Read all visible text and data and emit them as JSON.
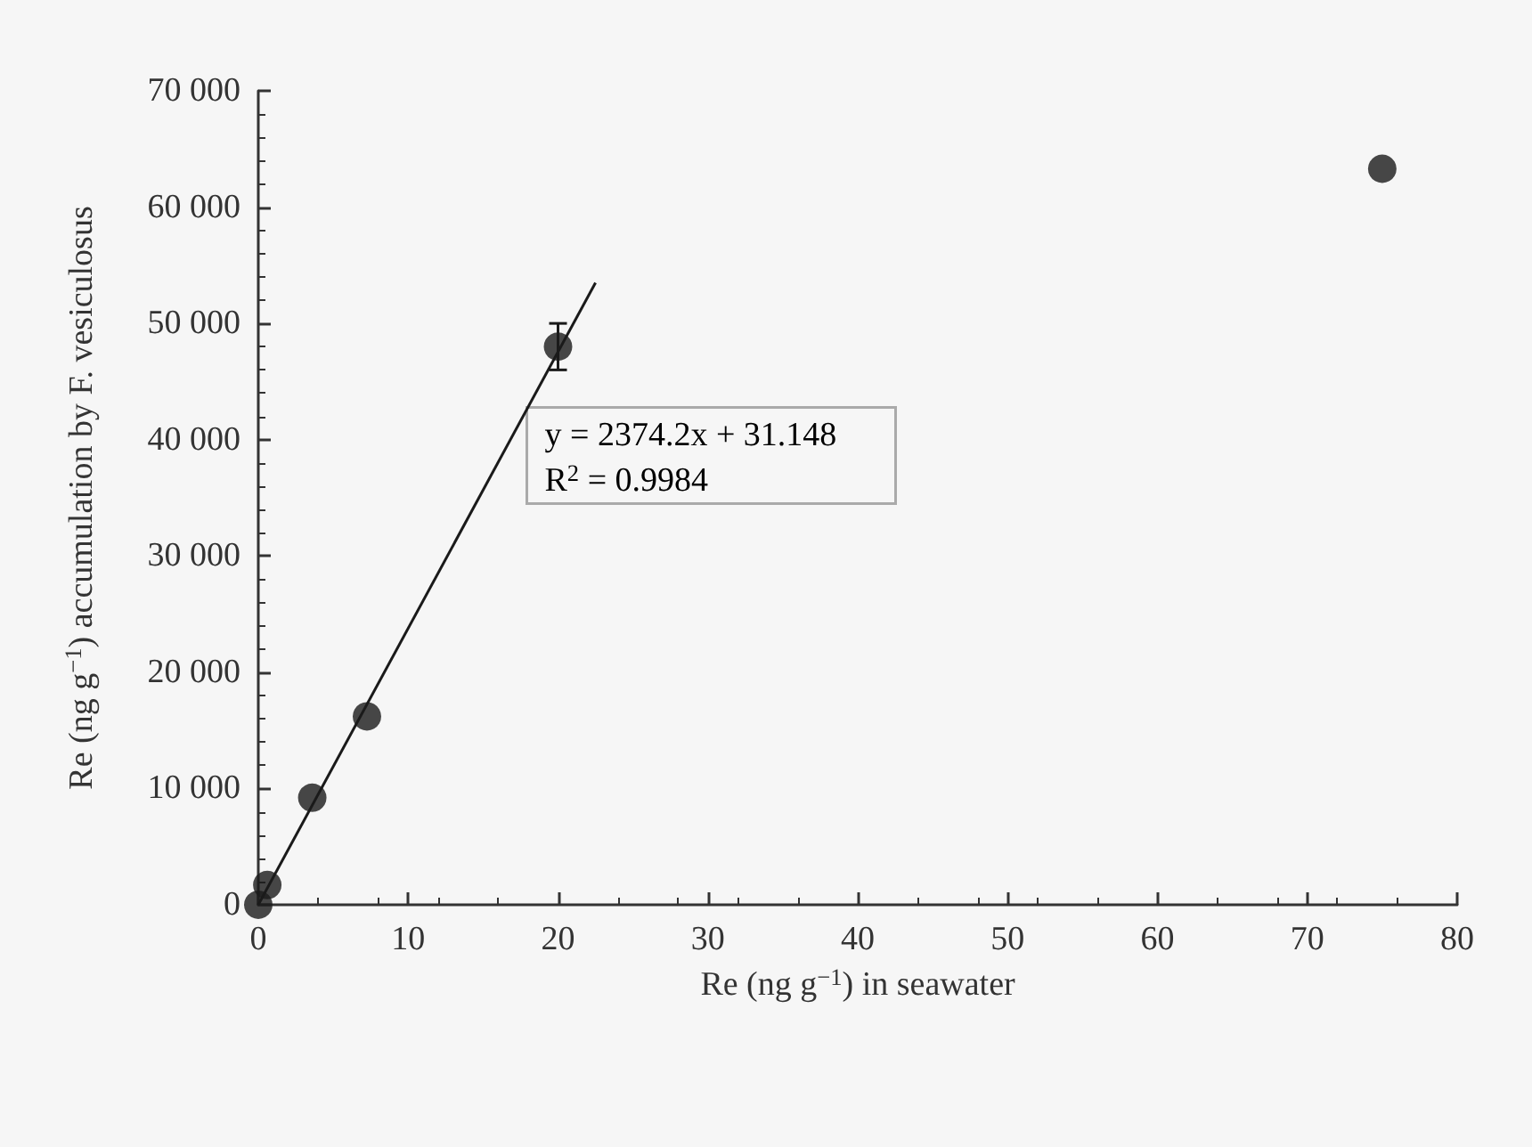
{
  "chart_data": {
    "type": "scatter",
    "xlabel": "Re (ng g$^{−1}$) in seawater",
    "ylabel": "Re (ng g$^{−1}$) accumulation by F. vesiculosus",
    "x": [
      0,
      0.6,
      3.6,
      7.25,
      20,
      75
    ],
    "series": [
      {
        "color": "#1a1a1a",
        "values": [
          0,
          1700,
          9200,
          16200,
          48000,
          63300
        ],
        "errors": [
          null,
          null,
          null,
          null,
          2000,
          null
        ]
      },
      {
        "type": "line",
        "color": "#1a1a1a",
        "x": [
          0,
          22.5
        ],
        "values": [
          0,
          53500
        ],
        "marker": "none"
      }
    ],
    "marker": "circle",
    "xlim": [
      0,
      80
    ],
    "xticks": [
      0,
      10,
      20,
      30,
      40,
      50,
      60,
      70,
      80
    ],
    "ylim": [
      0,
      70000
    ],
    "yticks": [
      0,
      {
        "value": 10000,
        "label": "10 000"
      },
      {
        "value": 20000,
        "label": "20 000"
      },
      {
        "value": 30000,
        "label": "30 000"
      },
      {
        "value": 40000,
        "label": "40 000"
      },
      {
        "value": 50000,
        "label": "50 000"
      },
      {
        "value": 60000,
        "label": "60 000"
      },
      {
        "value": 70000,
        "label": "70 000"
      }
    ],
    "annotations": [
      "y = 2374.2x + 31.148",
      "R$^{2}$ = 0.9984"
    ],
    "grid": false
  }
}
